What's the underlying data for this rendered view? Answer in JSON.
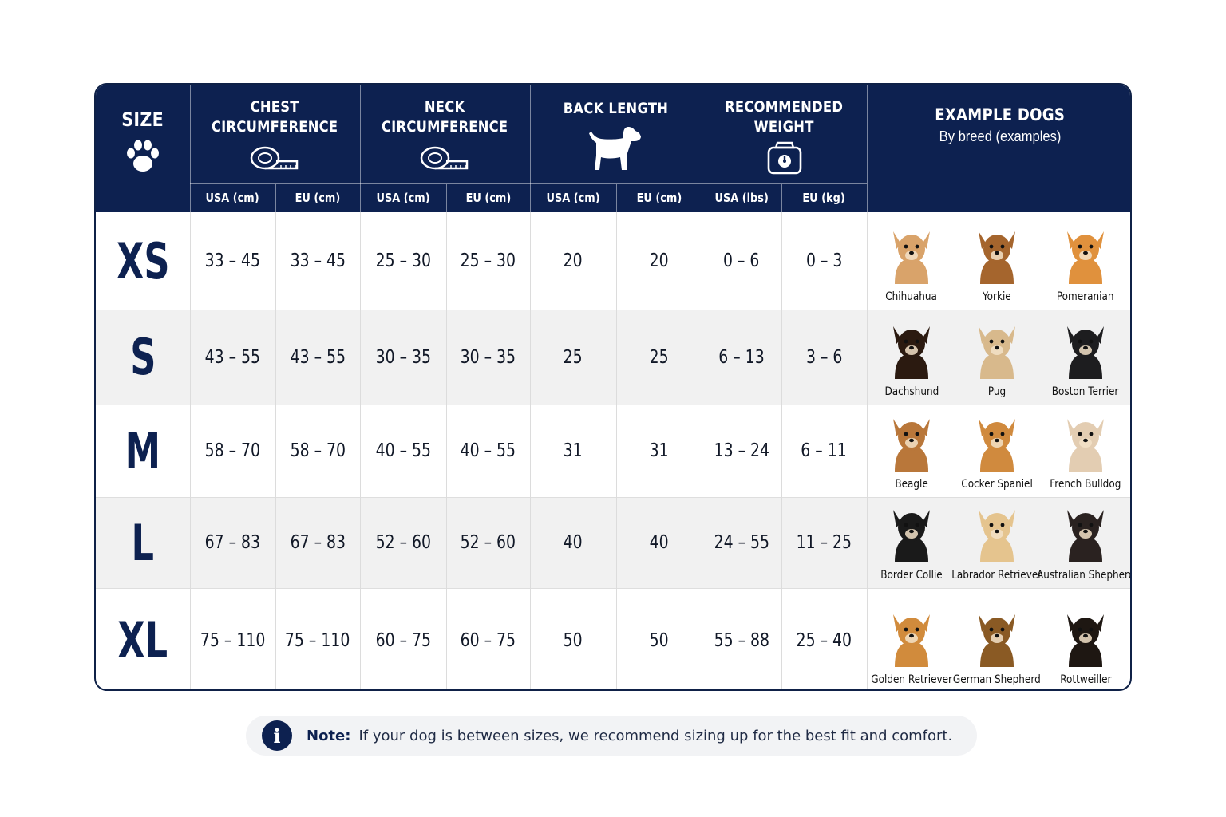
{
  "header": {
    "size_label": "SIZE",
    "chest": [
      "CHEST",
      "CIRCUMFERENCE"
    ],
    "neck": [
      "NECK",
      "CIRCUMFERENCE"
    ],
    "back": [
      "BACK LENGTH"
    ],
    "weight": [
      "RECOMMENDED",
      "WEIGHT"
    ],
    "example_title": "EXAMPLE DOGS",
    "example_sub": "By breed (examples)",
    "sub": [
      "USA (cm)",
      "EU (cm)",
      "USA (cm)",
      "EU (cm)",
      "USA (cm)",
      "EU (cm)",
      "USA (lbs)",
      "EU (kg)"
    ]
  },
  "icons": {
    "size": "paw-icon",
    "chest": "tape-measure-icon",
    "neck": "tape-measure-icon",
    "back": "dog-silhouette-icon",
    "weight": "scale-icon",
    "note": "info-icon"
  },
  "colors": {
    "navy": "#0d2150",
    "row_alt": "#f1f1f1"
  },
  "rows": [
    {
      "size": "XS",
      "values": [
        "33 – 45",
        "33 – 45",
        "25 – 30",
        "25 – 30",
        "20",
        "20",
        "0 – 6",
        "0 – 3"
      ],
      "dogs": [
        "Chihuahua",
        "Yorkie",
        "Pomeranian"
      ]
    },
    {
      "size": "S",
      "values": [
        "43 – 55",
        "43 – 55",
        "30 – 35",
        "30 – 35",
        "25",
        "25",
        "6 – 13",
        "3 – 6"
      ],
      "dogs": [
        "Dachshund",
        "Pug",
        "Boston Terrier"
      ]
    },
    {
      "size": "M",
      "values": [
        "58 – 70",
        "58 – 70",
        "40 – 55",
        "40 – 55",
        "31",
        "31",
        "13 – 24",
        "6 – 11"
      ],
      "dogs": [
        "Beagle",
        "Cocker Spaniel",
        "French Bulldog"
      ]
    },
    {
      "size": "L",
      "values": [
        "67 – 83",
        "67 – 83",
        "52 – 60",
        "52 – 60",
        "40",
        "40",
        "24 – 55",
        "11 – 25"
      ],
      "dogs": [
        "Border Collie",
        "Labrador Retriever",
        "Australian Shepherd"
      ]
    },
    {
      "size": "XL",
      "values": [
        "75 – 110",
        "75 – 110",
        "60 – 75",
        "60 – 75",
        "50",
        "50",
        "55 – 88",
        "25 – 40"
      ],
      "dogs": [
        "Golden Retriever",
        "German Shepherd",
        "Rottweiller"
      ]
    }
  ],
  "dog_colors": {
    "Chihuahua": "#d9a36a",
    "Yorkie": "#a5652d",
    "Pomeranian": "#e0913d",
    "Dachshund": "#2b1a10",
    "Pug": "#d8b98c",
    "Boston Terrier": "#1d1d1f",
    "Beagle": "#b9773a",
    "Cocker Spaniel": "#d08a3e",
    "French Bulldog": "#e3cdb2",
    "Border Collie": "#1a1a1a",
    "Labrador Retriever": "#e5c48e",
    "Australian Shepherd": "#2a2220",
    "Golden Retriever": "#d18b3c",
    "German Shepherd": "#8a5a24",
    "Rottweiller": "#1e1712"
  },
  "note": {
    "label": "Note:",
    "text": "If your dog is between sizes, we recommend sizing up for the best fit and comfort."
  }
}
